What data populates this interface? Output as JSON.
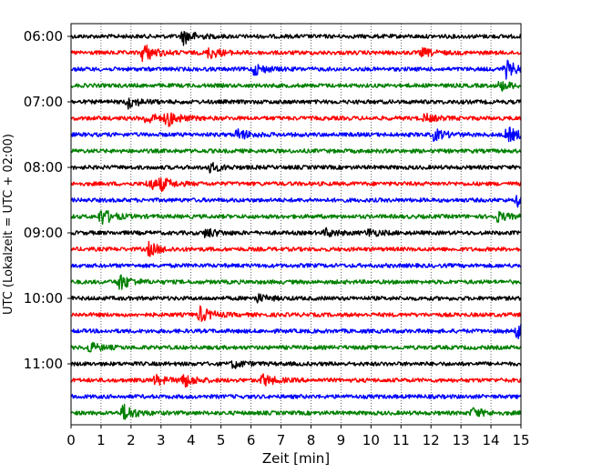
{
  "chart_data": {
    "type": "line",
    "title": "",
    "xlabel": "Zeit  [min]",
    "ylabel": "UTC (Lokalzeit = UTC + 02:00)",
    "xlim": [
      0,
      15
    ],
    "x_ticks": [
      "0",
      "1",
      "2",
      "3",
      "4",
      "5",
      "6",
      "7",
      "8",
      "9",
      "10",
      "11",
      "12",
      "13",
      "14",
      "15"
    ],
    "y_ticks": [
      "06:00",
      "07:00",
      "08:00",
      "09:00",
      "10:00",
      "11:00"
    ],
    "y_start": "06:00",
    "trace_interval_min": 15,
    "grid": {
      "vertical": true,
      "style": "dotted"
    },
    "colors": [
      "#000000",
      "#ff0000",
      "#0000ff",
      "#008000"
    ],
    "traces": [
      {
        "start": "06:00",
        "events": [
          [
            3.75,
            8
          ]
        ]
      },
      {
        "start": "06:15",
        "events": [
          [
            2.4,
            10
          ],
          [
            4.6,
            6
          ],
          [
            11.7,
            4
          ]
        ]
      },
      {
        "start": "06:30",
        "events": [
          [
            6.1,
            6
          ],
          [
            14.5,
            9
          ]
        ]
      },
      {
        "start": "06:45",
        "events": [
          [
            14.3,
            5
          ]
        ]
      },
      {
        "start": "07:00",
        "events": [
          [
            1.9,
            6
          ]
        ]
      },
      {
        "start": "07:15",
        "events": [
          [
            2.5,
            6
          ],
          [
            3.2,
            8
          ],
          [
            11.8,
            4
          ]
        ]
      },
      {
        "start": "07:30",
        "events": [
          [
            5.55,
            6
          ],
          [
            12.1,
            6
          ],
          [
            14.55,
            8
          ]
        ]
      },
      {
        "start": "07:45",
        "events": []
      },
      {
        "start": "08:00",
        "events": [
          [
            4.6,
            5
          ]
        ]
      },
      {
        "start": "08:15",
        "events": [
          [
            2.6,
            6
          ],
          [
            3.0,
            5
          ]
        ]
      },
      {
        "start": "08:30",
        "events": [
          [
            14.9,
            6
          ]
        ]
      },
      {
        "start": "08:45",
        "events": [
          [
            1.0,
            9
          ],
          [
            14.2,
            5
          ]
        ]
      },
      {
        "start": "09:00",
        "events": [
          [
            4.5,
            5
          ],
          [
            8.5,
            4
          ],
          [
            9.9,
            4
          ]
        ]
      },
      {
        "start": "09:15",
        "events": [
          [
            2.6,
            7
          ]
        ]
      },
      {
        "start": "09:30",
        "events": []
      },
      {
        "start": "09:45",
        "events": [
          [
            1.6,
            9
          ]
        ]
      },
      {
        "start": "10:00",
        "events": [
          [
            6.2,
            4
          ]
        ]
      },
      {
        "start": "10:15",
        "events": [
          [
            4.3,
            8
          ]
        ]
      },
      {
        "start": "10:30",
        "events": [
          [
            14.9,
            9
          ]
        ]
      },
      {
        "start": "10:45",
        "events": [
          [
            0.6,
            5
          ]
        ]
      },
      {
        "start": "11:00",
        "events": [
          [
            5.4,
            4
          ]
        ]
      },
      {
        "start": "11:15",
        "events": [
          [
            2.8,
            5
          ],
          [
            3.7,
            8
          ],
          [
            6.4,
            6
          ]
        ]
      },
      {
        "start": "11:30",
        "events": []
      },
      {
        "start": "11:45",
        "events": [
          [
            1.75,
            9
          ],
          [
            13.4,
            5
          ]
        ]
      }
    ]
  }
}
